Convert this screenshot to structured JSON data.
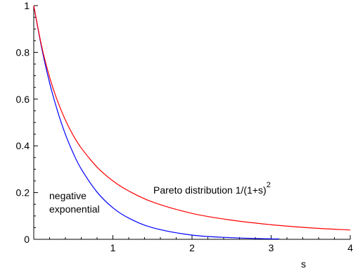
{
  "chart_data": {
    "type": "line",
    "xlabel": "s",
    "ylabel": "",
    "xlim": [
      0,
      4
    ],
    "ylim": [
      0,
      1
    ],
    "x_ticks": [
      1,
      2,
      3,
      4
    ],
    "x_tick_labels": [
      "1",
      "2",
      "3",
      "4"
    ],
    "y_ticks": [
      0,
      0.2,
      0.4,
      0.6,
      0.8,
      1
    ],
    "y_tick_labels": [
      "0",
      "0.2",
      "0.4",
      "0.6",
      "0.8",
      "1"
    ],
    "grid": false,
    "series": [
      {
        "name": "negative exponential",
        "color": "#0000ff",
        "x": [
          0,
          0.1,
          0.2,
          0.3,
          0.4,
          0.5,
          0.6,
          0.8,
          1.0,
          1.2,
          1.5,
          2.0,
          2.5,
          3.0,
          3.1
        ],
        "y": [
          1,
          0.819,
          0.67,
          0.549,
          0.449,
          0.368,
          0.301,
          0.202,
          0.135,
          0.091,
          0.05,
          0.018,
          0.007,
          0.002,
          0.002
        ]
      },
      {
        "name": "Pareto distribution 1/(1+s)²",
        "color": "#ff0000",
        "x": [
          0,
          0.1,
          0.2,
          0.3,
          0.4,
          0.5,
          0.6,
          0.8,
          1.0,
          1.2,
          1.5,
          2.0,
          2.5,
          3.0,
          3.5,
          4.0
        ],
        "y": [
          1,
          0.826,
          0.694,
          0.592,
          0.51,
          0.444,
          0.391,
          0.309,
          0.25,
          0.207,
          0.16,
          0.111,
          0.082,
          0.0625,
          0.049,
          0.04
        ]
      }
    ],
    "annotations": {
      "exp_line1": "negative",
      "exp_line2": "exponential",
      "pareto_text": "Pareto distribution  1/(1+s)",
      "pareto_sup": "2"
    }
  }
}
